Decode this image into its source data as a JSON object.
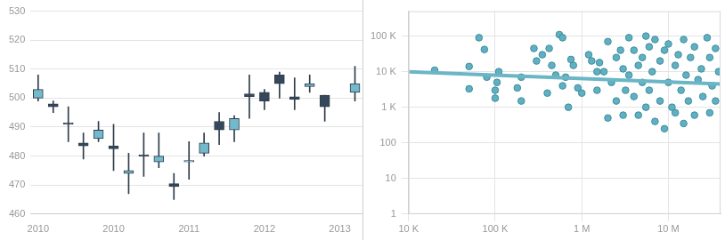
{
  "chart_data": [
    {
      "type": "candlestick",
      "categories": [
        "2010",
        null,
        null,
        null,
        null,
        "2010",
        null,
        null,
        null,
        null,
        "2011",
        null,
        null,
        null,
        null,
        "2012",
        null,
        null,
        null,
        null,
        "2013",
        null
      ],
      "open": [
        500,
        498,
        491.5,
        484.5,
        486,
        483.5,
        474,
        480.5,
        478,
        470.5,
        478,
        481,
        492,
        489,
        501.5,
        502,
        508,
        500.5,
        504,
        501,
        null,
        502
      ],
      "high": [
        508,
        499,
        497,
        488,
        492,
        491,
        481,
        488,
        488,
        474,
        485,
        488,
        495,
        494,
        508,
        503,
        509,
        507,
        508,
        501,
        null,
        511
      ],
      "low": [
        499,
        495,
        485,
        479,
        485,
        475,
        467,
        473,
        476,
        465,
        472,
        480,
        484,
        485,
        493,
        496,
        500,
        496,
        502,
        492,
        null,
        499
      ],
      "close": [
        503,
        497,
        491,
        483.5,
        489,
        482.5,
        475,
        480,
        480,
        469.5,
        478.5,
        484.5,
        489,
        493,
        500.5,
        499,
        505,
        499.5,
        505,
        497,
        null,
        505
      ],
      "colors": [
        "#72b9cb",
        "#35475a",
        "#35475a",
        "#35475a",
        "#72b9cb",
        "#35475a",
        "#72b9cb",
        "#35475a",
        "#72b9cb",
        "#35475a",
        "#72b9cb",
        "#72b9cb",
        "#35475a",
        "#72b9cb",
        "#35475a",
        "#35475a",
        "#35475a",
        "#35475a",
        "#72b9cb",
        "#35475a",
        null,
        "#72b9cb"
      ],
      "ylim": [
        460,
        530
      ],
      "yticks": [
        460,
        470,
        480,
        490,
        500,
        510,
        520,
        530
      ],
      "grid": true
    },
    {
      "type": "scatter",
      "log": true,
      "grid": true,
      "xlim": [
        10000,
        40000000
      ],
      "xticks": [
        {
          "value": 10000,
          "label": "10 K"
        },
        {
          "value": 100000,
          "label": "100 K"
        },
        {
          "value": 1000000,
          "label": "1 M"
        },
        {
          "value": 10000000,
          "label": "10 M"
        }
      ],
      "ylim": [
        1,
        500000
      ],
      "yticks": [
        1,
        10,
        100,
        {
          "value": 1000,
          "label": "1 K"
        },
        {
          "value": 10000,
          "label": "10 K"
        },
        {
          "value": 100000,
          "label": "100 K"
        }
      ],
      "series": [
        {
          "type": "scatter",
          "color": "#5fb0c2",
          "marker": "circle",
          "x": [
            20000,
            50000,
            50000,
            65000,
            75000,
            80000,
            100000,
            100000,
            105000,
            110000,
            180000,
            200000,
            200000,
            280000,
            300000,
            350000,
            400000,
            420000,
            450000,
            500000,
            550000,
            600000,
            600000,
            650000,
            700000,
            750000,
            800000,
            900000,
            1000000,
            1200000,
            1300000,
            1500000,
            1500000,
            1600000,
            1800000,
            2000000,
            2000000,
            2200000,
            2500000,
            2500000,
            2800000,
            3000000,
            3000000,
            3200000,
            3500000,
            3500000,
            4000000,
            4000000,
            4500000,
            4500000,
            5000000,
            5000000,
            5500000,
            5500000,
            6000000,
            6000000,
            6500000,
            7000000,
            7000000,
            8000000,
            8000000,
            9000000,
            9000000,
            10000000,
            10000000,
            11000000,
            12000000,
            12000000,
            13000000,
            14000000,
            15000000,
            15000000,
            16000000,
            17000000,
            18000000,
            20000000,
            20000000,
            22000000,
            24000000,
            25000000,
            28000000,
            30000000,
            30000000,
            32000000,
            35000000,
            35000000,
            38000000
          ],
          "values": [
            11000,
            3300,
            14000,
            90000,
            42000,
            7000,
            1800,
            3000,
            5000,
            10000,
            3500,
            1500,
            7000,
            45000,
            20000,
            30000,
            2500,
            45000,
            15000,
            8000,
            110000,
            90000,
            4000,
            7000,
            1000,
            22000,
            15000,
            3500,
            2500,
            30000,
            20000,
            10000,
            3000,
            18000,
            10000,
            70000,
            500,
            5000,
            1500,
            25000,
            40000,
            12000,
            600,
            3000,
            90000,
            8000,
            2000,
            40000,
            15000,
            600,
            5000,
            25000,
            100000,
            1000,
            3000,
            50000,
            10000,
            80000,
            400,
            20000,
            1500,
            40000,
            250,
            60000,
            5000,
            1000,
            15000,
            700,
            30000,
            3000,
            80000,
            350,
            8000,
            1500,
            25000,
            600,
            50000,
            6000,
            12000,
            2000,
            90000,
            700,
            25000,
            4000,
            45000,
            1500,
            10000
          ]
        },
        {
          "type": "line",
          "color": "#6ab5c6",
          "line_style": "solid",
          "x": [
            10000,
            40000000
          ],
          "values": [
            10000,
            4500
          ]
        }
      ]
    }
  ]
}
